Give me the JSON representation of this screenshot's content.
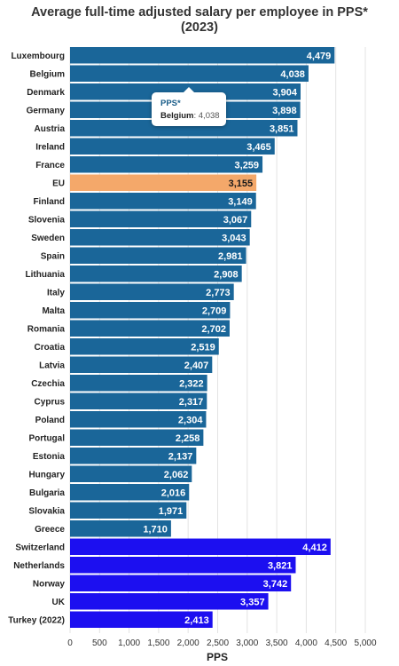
{
  "chart_data": {
    "type": "bar",
    "orientation": "horizontal",
    "title": "Average full-time adjusted salary per employee in PPS*",
    "subtitle": "(2023)",
    "xlabel": "PPS",
    "ylabel": "",
    "xlim": [
      0,
      5000
    ],
    "xticks": [
      0,
      500,
      1000,
      1500,
      2000,
      2500,
      3000,
      3500,
      4000,
      4500,
      5000
    ],
    "xtick_labels": [
      "0",
      "500",
      "1,000",
      "1,500",
      "2,000",
      "2,500",
      "3,000",
      "3,500",
      "4,000",
      "4,500",
      "5,000"
    ],
    "grid": true,
    "legend": "none",
    "categories": [
      "Luxembourg",
      "Belgium",
      "Denmark",
      "Germany",
      "Austria",
      "Ireland",
      "France",
      "EU",
      "Finland",
      "Slovenia",
      "Sweden",
      "Spain",
      "Lithuania",
      "Italy",
      "Malta",
      "Romania",
      "Croatia",
      "Latvia",
      "Czechia",
      "Cyprus",
      "Poland",
      "Portugal",
      "Estonia",
      "Hungary",
      "Bulgaria",
      "Slovakia",
      "Greece",
      "Switzerland",
      "Netherlands",
      "Norway",
      "UK",
      "Turkey (2022)"
    ],
    "values": [
      4479,
      4038,
      3904,
      3898,
      3851,
      3465,
      3259,
      3155,
      3149,
      3067,
      3043,
      2981,
      2908,
      2773,
      2709,
      2702,
      2519,
      2407,
      2322,
      2317,
      2304,
      2258,
      2137,
      2062,
      2016,
      1971,
      1710,
      4412,
      3821,
      3742,
      3357,
      2413
    ],
    "value_labels": [
      "4,479",
      "4,038",
      "3,904",
      "3,898",
      "3,851",
      "3,465",
      "3,259",
      "3,155",
      "3,149",
      "3,067",
      "3,043",
      "2,981",
      "2,908",
      "2,773",
      "2,709",
      "2,702",
      "2,519",
      "2,407",
      "2,322",
      "2,317",
      "2,304",
      "2,258",
      "2,137",
      "2,062",
      "2,016",
      "1,971",
      "1,710",
      "4,412",
      "3,821",
      "3,742",
      "3,357",
      "2,413"
    ],
    "groups": [
      "eu",
      "eu",
      "eu",
      "eu",
      "eu",
      "eu",
      "eu",
      "eu-avg",
      "eu",
      "eu",
      "eu",
      "eu",
      "eu",
      "eu",
      "eu",
      "eu",
      "eu",
      "eu",
      "eu",
      "eu",
      "eu",
      "eu",
      "eu",
      "eu",
      "eu",
      "eu",
      "eu",
      "non-eu",
      "non-eu",
      "non-eu",
      "non-eu",
      "non-eu"
    ],
    "colors": {
      "eu": "#1a6699",
      "eu-avg": "#f4a86a",
      "non-eu": "#1c0ff0",
      "grid": "#e3e3e3"
    },
    "tooltip": {
      "title": "PPS*",
      "label": "Belgium",
      "value": "4,038"
    }
  }
}
